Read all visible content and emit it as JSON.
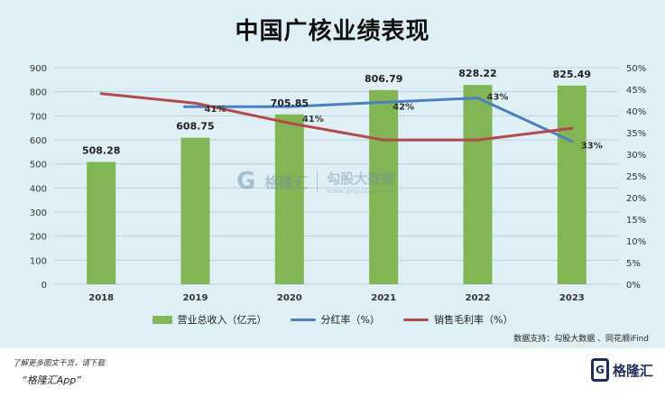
{
  "title": "中国广核业绩表现",
  "chart_data": {
    "type": "bar+line",
    "categories": [
      "2018",
      "2019",
      "2020",
      "2021",
      "2022",
      "2023"
    ],
    "series": [
      {
        "name": "营业总收入（亿元）",
        "type": "bar",
        "axis": "left",
        "values": [
          508.28,
          608.75,
          705.85,
          806.79,
          828.22,
          825.49
        ],
        "labels": [
          "508.28",
          "608.75",
          "705.85",
          "806.79",
          "828.22",
          "825.49"
        ],
        "color": "#82b553"
      },
      {
        "name": "分红率（%）",
        "type": "line",
        "axis": "right",
        "values": [
          null,
          41,
          41,
          42,
          43,
          33
        ],
        "labels": [
          "",
          "41%",
          "41%",
          "42%",
          "43%",
          "33%"
        ],
        "color": "#4a7fc4"
      },
      {
        "name": "销售毛利率（%）",
        "type": "line",
        "axis": "right",
        "values": [
          44,
          41.8,
          37.2,
          33.3,
          33.3,
          36
        ],
        "labels": [
          "",
          "",
          "",
          "",
          "",
          ""
        ],
        "color": "#b24a48"
      }
    ],
    "y_left": {
      "min": 0,
      "max": 900,
      "step": 100
    },
    "y_right": {
      "min": 0,
      "max": 50,
      "step": 5,
      "suffix": "%"
    },
    "grid": true,
    "legend": "bottom-center"
  },
  "source": "数据支持：勾股大数据 、同花顺iFind",
  "watermark": {
    "logo": "G",
    "name": "格隆汇",
    "title": "勾股大数据",
    "url": "www.gogudata.com"
  },
  "footer": {
    "note": "了解更多图文干货，请下载",
    "app": "“格隆汇App”"
  },
  "brand": {
    "icon": "G",
    "name": "格隆汇"
  }
}
